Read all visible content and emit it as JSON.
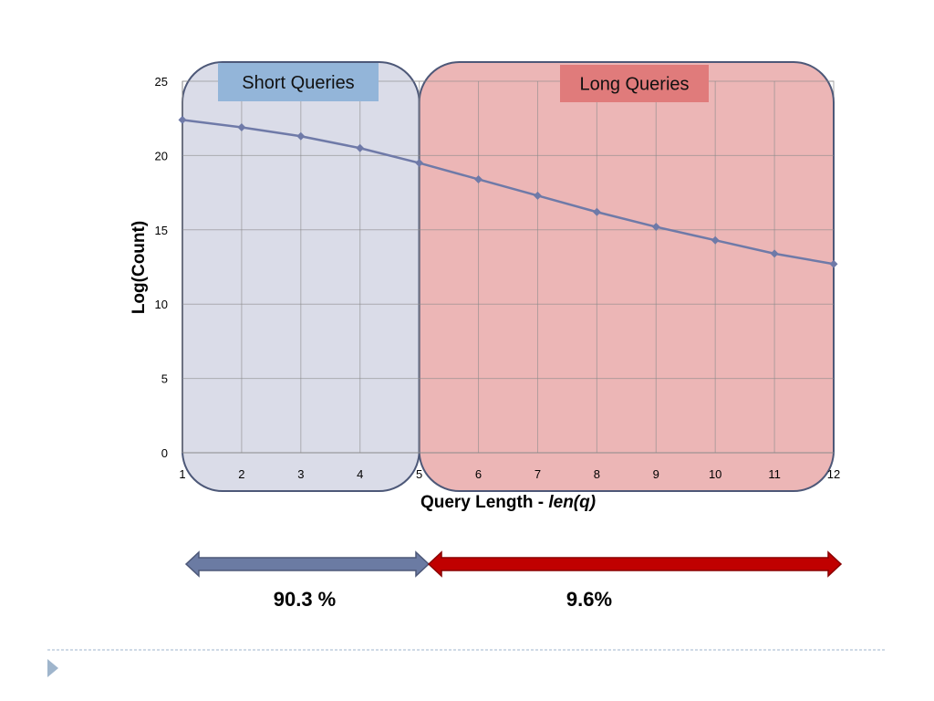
{
  "chart_data": {
    "type": "line",
    "x": [
      1,
      2,
      3,
      4,
      5,
      6,
      7,
      8,
      9,
      10,
      11,
      12
    ],
    "series": [
      {
        "values": [
          22.4,
          21.9,
          21.3,
          20.5,
          19.5,
          18.4,
          17.3,
          16.2,
          15.2,
          14.3,
          13.4,
          12.7
        ]
      }
    ],
    "xlabel_prefix": "Query Length - ",
    "xlabel_italic": "len(q)",
    "ylabel": "Log(Count)",
    "xlim": [
      1,
      12
    ],
    "ylim": [
      0,
      25
    ],
    "yticks": [
      0,
      5,
      10,
      15,
      20,
      25
    ],
    "xtick_labels": [
      "1",
      "2",
      "3",
      "4",
      "5",
      "6",
      "7",
      "8",
      "9",
      "10",
      "11",
      "12"
    ],
    "grid": true,
    "line_color": "#6f7aa8",
    "regions": [
      {
        "label": "Short Queries",
        "x_range": [
          1,
          5
        ],
        "fill": "#d6d8e6",
        "label_bg": "#93b5d9"
      },
      {
        "label": "Long Queries",
        "x_range": [
          5,
          12
        ],
        "fill": "#eab0b0",
        "label_bg": "#e07b7b"
      }
    ],
    "shares": [
      {
        "label": "90.3 %",
        "x_range": [
          1,
          5
        ],
        "color": "#6b7ba3"
      },
      {
        "label": "9.6%",
        "x_range": [
          5,
          12
        ],
        "color": "#c00000"
      }
    ]
  },
  "slide": {
    "divider_color": "#9fb5cc",
    "bullet_color": "#9fb5cc",
    "bullet_icon": "triangle-bullet-icon"
  }
}
